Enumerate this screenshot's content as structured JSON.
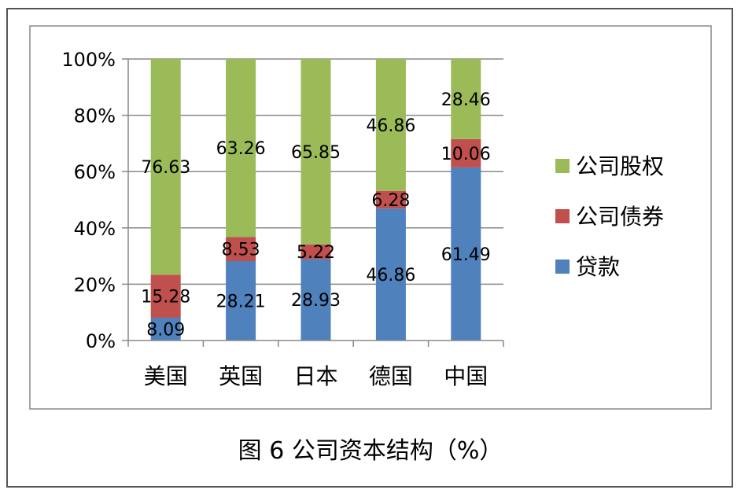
{
  "chart_data": {
    "type": "bar",
    "stacked": true,
    "percent_stacked": true,
    "categories": [
      "美国",
      "英国",
      "日本",
      "德国",
      "中国"
    ],
    "series": [
      {
        "name": "贷款",
        "color": "#4F81BD",
        "values": [
          8.09,
          28.21,
          28.93,
          46.86,
          61.49
        ]
      },
      {
        "name": "公司债券",
        "color": "#C0504D",
        "values": [
          15.28,
          8.53,
          5.22,
          6.28,
          10.06
        ]
      },
      {
        "name": "公司股权",
        "color": "#9BBB59",
        "values": [
          76.63,
          63.26,
          65.85,
          46.86,
          28.46
        ]
      }
    ],
    "y_ticks": [
      "0%",
      "20%",
      "40%",
      "60%",
      "80%",
      "100%"
    ],
    "ylim": [
      0,
      100
    ],
    "grid": true,
    "legend_position": "right",
    "legend_order": [
      "公司股权",
      "公司债券",
      "贷款"
    ]
  },
  "caption": "图 6  公司资本结构（%）"
}
